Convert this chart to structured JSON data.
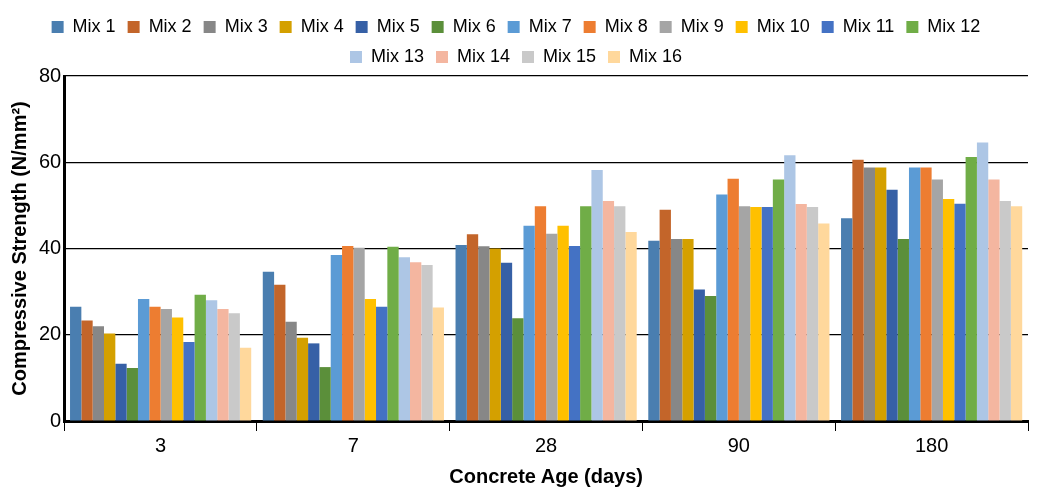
{
  "chart_data": {
    "type": "bar",
    "xlabel": "Concrete Age (days)",
    "ylabel": "Compressive Strength (N/mm²)",
    "categories": [
      "3",
      "7",
      "28",
      "90",
      "180"
    ],
    "ylim": [
      0,
      80
    ],
    "yticks": [
      0,
      20,
      40,
      60,
      80
    ],
    "grid": "y",
    "legend": "top",
    "series": [
      {
        "name": "Mix 1",
        "color": "#4a7eb0",
        "values": [
          26.5,
          34.6,
          40.8,
          41.8,
          47
        ]
      },
      {
        "name": "Mix 2",
        "color": "#c3652a",
        "values": [
          23.3,
          31.6,
          43.3,
          49,
          60.6
        ]
      },
      {
        "name": "Mix 3",
        "color": "#878787",
        "values": [
          22,
          23,
          40.5,
          42.2,
          58.8
        ]
      },
      {
        "name": "Mix 4",
        "color": "#d4a000",
        "values": [
          20.3,
          19.3,
          40,
          42.2,
          58.8
        ]
      },
      {
        "name": "Mix 5",
        "color": "#3660a6",
        "values": [
          13.3,
          18,
          36.7,
          30.5,
          53.6
        ]
      },
      {
        "name": "Mix 6",
        "color": "#5b8f3a",
        "values": [
          12.3,
          12.5,
          23.8,
          29,
          42.2
        ]
      },
      {
        "name": "Mix 7",
        "color": "#5b9bd5",
        "values": [
          28.3,
          38.5,
          45.3,
          52.5,
          58.8
        ]
      },
      {
        "name": "Mix 8",
        "color": "#ed7d31",
        "values": [
          26.5,
          40.6,
          49.8,
          56.2,
          58.8
        ]
      },
      {
        "name": "Mix 9",
        "color": "#a5a5a5",
        "values": [
          26,
          40.2,
          43.4,
          49.8,
          56
        ]
      },
      {
        "name": "Mix 10",
        "color": "#ffc000",
        "values": [
          24,
          28.3,
          45.3,
          49.6,
          51.5
        ]
      },
      {
        "name": "Mix 11",
        "color": "#4472c4",
        "values": [
          18.3,
          26.5,
          40.6,
          49.6,
          50.4
        ]
      },
      {
        "name": "Mix 12",
        "color": "#70ad47",
        "values": [
          29.3,
          40.4,
          49.8,
          56,
          61.2
        ]
      },
      {
        "name": "Mix 13",
        "color": "#adc6e5",
        "values": [
          28,
          38,
          58.2,
          61.6,
          64.6
        ]
      },
      {
        "name": "Mix 14",
        "color": "#f4b6a0",
        "values": [
          26,
          36.8,
          51,
          50.3,
          56
        ]
      },
      {
        "name": "Mix 15",
        "color": "#c9c9c9",
        "values": [
          25,
          36.2,
          49.8,
          49.6,
          51
        ]
      },
      {
        "name": "Mix 16",
        "color": "#ffd89c",
        "values": [
          17,
          26.3,
          43.8,
          45.8,
          49.8
        ]
      }
    ]
  }
}
